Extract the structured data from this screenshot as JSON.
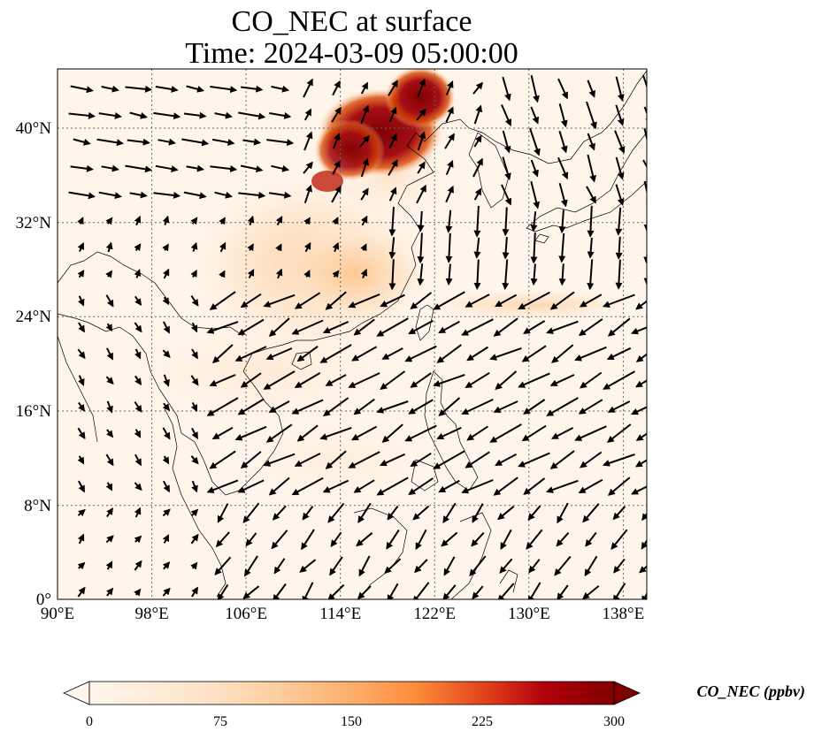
{
  "title": {
    "line1": "CO_NEC at surface",
    "line2": "Time: 2024-03-09 05:00:00"
  },
  "map": {
    "lon_range": [
      90,
      140
    ],
    "lat_range": [
      0,
      45
    ],
    "lon_ticks": [
      "90°E",
      "98°E",
      "106°E",
      "114°E",
      "122°E",
      "130°E",
      "138°E"
    ],
    "lat_ticks": [
      "0°",
      "8°N",
      "16°N",
      "24°N",
      "32°N",
      "40°N"
    ],
    "gridlines": true,
    "field": "CO_NEC",
    "wind_vectors": true
  },
  "colorbar": {
    "label": "CO_NEC (ppbv)",
    "ticks": [
      "0",
      "75",
      "150",
      "225",
      "300"
    ],
    "range": [
      0,
      300
    ],
    "extend": "both",
    "colors": [
      "#fff5eb",
      "#fdd0a2",
      "#fd8d3c",
      "#d94801",
      "#a50f15",
      "#7f0000"
    ]
  }
}
